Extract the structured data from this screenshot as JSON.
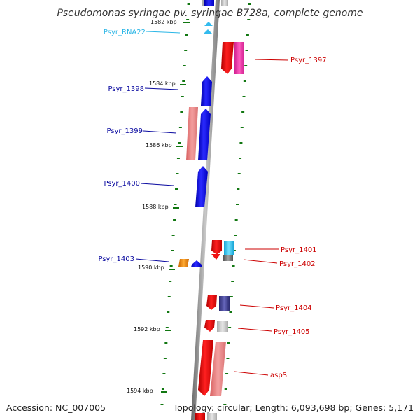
{
  "title": "Pseudomonas syringae pv. syringae B728a, complete genome",
  "footer": {
    "accession": "Accession: NC_007005",
    "summary": "Topology: circular; Length: 6,093,698 bp; Genes: 5,171"
  },
  "ticks": [
    "1582 kbp",
    "1584 kbp",
    "1586 kbp",
    "1588 kbp",
    "1590 kbp",
    "1592 kbp",
    "1594 kbp"
  ],
  "colors": {
    "left_label": "#0a0aa0",
    "right_label": "#cc0000",
    "rna_label": "#2bb6e6",
    "backbone": "#999999",
    "tick_mark": "#117711"
  },
  "labels": {
    "psyr_rna22": "Psyr_RNA22",
    "psyr_1397": "Psyr_1397",
    "psyr_1398": "Psyr_1398",
    "psyr_1399": "Psyr_1399",
    "psyr_1400": "Psyr_1400",
    "psyr_1401": "Psyr_1401",
    "psyr_1402": "Psyr_1402",
    "psyr_1403": "Psyr_1403",
    "psyr_1404": "Psyr_1404",
    "psyr_1405": "Psyr_1405",
    "asps": "aspS"
  }
}
